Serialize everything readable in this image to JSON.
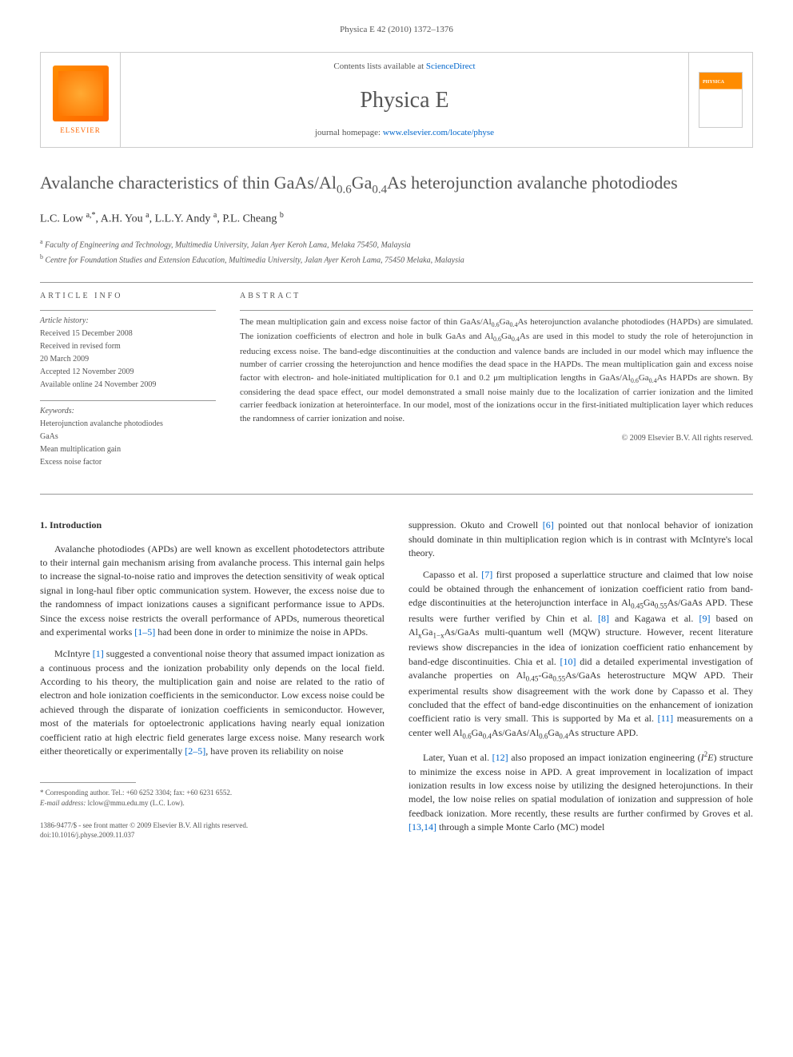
{
  "running_header": "Physica E 42 (2010) 1372–1376",
  "banner": {
    "contents_prefix": "Contents lists available at ",
    "contents_link": "ScienceDirect",
    "journal_title": "Physica E",
    "homepage_prefix": "journal homepage: ",
    "homepage_link": "www.elsevier.com/locate/physe",
    "publisher": "ELSEVIER"
  },
  "article": {
    "title_html": "Avalanche characteristics of thin GaAs/Al<sub>0.6</sub>Ga<sub>0.4</sub>As heterojunction avalanche photodiodes",
    "authors_html": "L.C. Low <sup>a,*</sup>, A.H. You <sup>a</sup>, L.L.Y. Andy <sup>a</sup>, P.L. Cheang <sup>b</sup>",
    "affiliations": [
      "<sup>a</sup> Faculty of Engineering and Technology, Multimedia University, Jalan Ayer Keroh Lama, Melaka 75450, Malaysia",
      "<sup>b</sup> Centre for Foundation Studies and Extension Education, Multimedia University, Jalan Ayer Keroh Lama, 75450 Melaka, Malaysia"
    ]
  },
  "info": {
    "heading": "ARTICLE INFO",
    "history_label": "Article history:",
    "received": "Received 15 December 2008",
    "revised_label": "Received in revised form",
    "revised_date": "20 March 2009",
    "accepted": "Accepted 12 November 2009",
    "online": "Available online 24 November 2009",
    "keywords_label": "Keywords:",
    "keywords": [
      "Heterojunction avalanche photodiodes",
      "GaAs",
      "Mean multiplication gain",
      "Excess noise factor"
    ]
  },
  "abstract": {
    "heading": "ABSTRACT",
    "text_html": "The mean multiplication gain and excess noise factor of thin GaAs/Al<sub>0.6</sub>Ga<sub>0.4</sub>As heterojunction avalanche photodiodes (HAPDs) are simulated. The ionization coefficients of electron and hole in bulk GaAs and Al<sub>0.6</sub>Ga<sub>0.4</sub>As are used in this model to study the role of heterojunction in reducing excess noise. The band-edge discontinuities at the conduction and valence bands are included in our model which may influence the number of carrier crossing the heterojunction and hence modifies the dead space in the HAPDs. The mean multiplication gain and excess noise factor with electron- and hole-initiated multiplication for 0.1 and 0.2 μm multiplication lengths in GaAs/Al<sub>0.6</sub>Ga<sub>0.4</sub>As HAPDs are shown. By considering the dead space effect, our model demonstrated a small noise mainly due to the localization of carrier ionization and the limited carrier feedback ionization at heterointerface. In our model, most of the ionizations occur in the first-initiated multiplication layer which reduces the randomness of carrier ionization and noise.",
    "copyright": "© 2009 Elsevier B.V. All rights reserved."
  },
  "body": {
    "section_heading": "1. Introduction",
    "col1": [
      "Avalanche photodiodes (APDs) are well known as excellent photodetectors attribute to their internal gain mechanism arising from avalanche process. This internal gain helps to increase the signal-to-noise ratio and improves the detection sensitivity of weak optical signal in long-haul fiber optic communication system. However, the excess noise due to the randomness of impact ionizations causes a significant performance issue to APDs. Since the excess noise restricts the overall performance of APDs, numerous theoretical and experimental works <span class=\"ref-link\">[1–5]</span> had been done in order to minimize the noise in APDs.",
      "McIntyre <span class=\"ref-link\">[1]</span> suggested a conventional noise theory that assumed impact ionization as a continuous process and the ionization probability only depends on the local field. According to his theory, the multiplication gain and noise are related to the ratio of electron and hole ionization coefficients in the semiconductor. Low excess noise could be achieved through the disparate of ionization coefficients in semiconductor. However, most of the materials for optoelectronic applications having nearly equal ionization coefficient ratio at high electric field generates large excess noise. Many research work either theoretically or experimentally <span class=\"ref-link\">[2–5]</span>, have proven its reliability on noise"
    ],
    "col2": [
      "suppression. Okuto and Crowell <span class=\"ref-link\">[6]</span> pointed out that nonlocal behavior of ionization should dominate in thin multiplication region which is in contrast with McIntyre's local theory.",
      "Capasso et al. <span class=\"ref-link\">[7]</span> first proposed a superlattice structure and claimed that low noise could be obtained through the enhancement of ionization coefficient ratio from band-edge discontinuities at the heterojunction interface in Al<sub>0.45</sub>Ga<sub>0.55</sub>As/GaAs APD. These results were further verified by Chin et al. <span class=\"ref-link\">[8]</span> and Kagawa et al. <span class=\"ref-link\">[9]</span> based on Al<sub>x</sub>Ga<sub>1−x</sub>As/GaAs multi-quantum well (MQW) structure. However, recent literature reviews show discrepancies in the idea of ionization coefficient ratio enhancement by band-edge discontinuities. Chia et al. <span class=\"ref-link\">[10]</span> did a detailed experimental investigation of avalanche properties on Al<sub>0.45</sub>-Ga<sub>0.55</sub>As/GaAs heterostructure MQW APD. Their experimental results show disagreement with the work done by Capasso et al. They concluded that the effect of band-edge discontinuities on the enhancement of ionization coefficient ratio is very small. This is supported by Ma et al. <span class=\"ref-link\">[11]</span> measurements on a center well Al<sub>0.6</sub>Ga<sub>0.4</sub>As/GaAs/Al<sub>0.6</sub>Ga<sub>0.4</sub>As structure APD.",
      "Later, Yuan et al. <span class=\"ref-link\">[12]</span> also proposed an impact ionization engineering (<i>I</i><sup>2</sup><i>E</i>) structure to minimize the excess noise in APD. A great improvement in localization of impact ionization results in low excess noise by utilizing the designed heterojunctions. In their model, the low noise relies on spatial modulation of ionization and suppression of hole feedback ionization. More recently, these results are further confirmed by Groves et al. <span class=\"ref-link\">[13,14]</span> through a simple Monte Carlo (MC) model"
    ]
  },
  "footnote": {
    "corresponding": "* Corresponding author. Tel.: +60 6252 3304; fax: +60 6231 6552.",
    "email_label": "E-mail address:",
    "email": "lclow@mmu.edu.my (L.C. Low)."
  },
  "footer": {
    "issn": "1386-9477/$ - see front matter © 2009 Elsevier B.V. All rights reserved.",
    "doi": "doi:10.1016/j.physe.2009.11.037"
  }
}
